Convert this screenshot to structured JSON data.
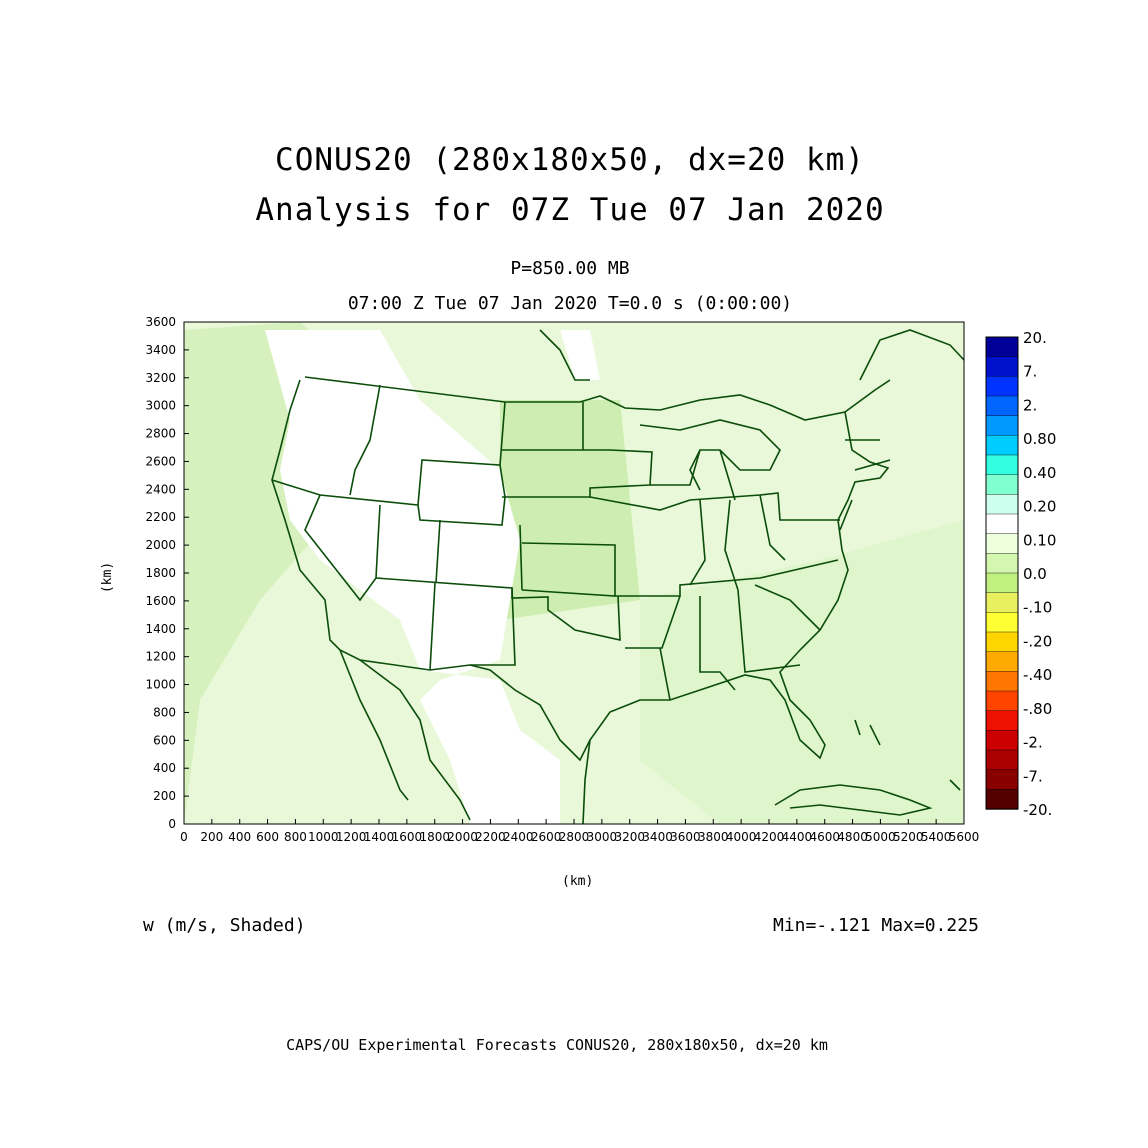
{
  "title": {
    "line1": "CONUS20 (280x180x50, dx=20 km)",
    "line2": "Analysis for 07Z Tue 07 Jan 2020"
  },
  "subtitle": {
    "level": "P=850.00 MB",
    "time": "07:00 Z Tue 07 Jan 2020   T=0.0 s (0:00:00)"
  },
  "axes": {
    "xlabel": "(km)",
    "ylabel": "(km)",
    "x_ticks": [
      "0",
      "200",
      "400",
      "600",
      "800",
      "1000",
      "1200",
      "1400",
      "1600",
      "1800",
      "2000",
      "2200",
      "2400",
      "2600",
      "2800",
      "3000",
      "3200",
      "3400",
      "3600",
      "3800",
      "4000",
      "4200",
      "4400",
      "4600",
      "4800",
      "5000",
      "5200",
      "5400",
      "5600"
    ],
    "y_ticks": [
      "0",
      "200",
      "400",
      "600",
      "800",
      "1000",
      "1200",
      "1400",
      "1600",
      "1800",
      "2000",
      "2200",
      "2400",
      "2600",
      "2800",
      "3000",
      "3200",
      "3400",
      "3600"
    ],
    "xlim": [
      0,
      5600
    ],
    "ylim": [
      0,
      3600
    ]
  },
  "colorbar": {
    "labels": [
      "20.",
      "7.",
      "2.",
      "0.80",
      "0.40",
      "0.20",
      "0.10",
      "0.0",
      "-.10",
      "-.20",
      "-.40",
      "-.80",
      "-2.",
      "-7.",
      "-20."
    ],
    "colors": [
      "#000099",
      "#0011cc",
      "#0033ff",
      "#0066ff",
      "#0099ff",
      "#00ccff",
      "#33ffe0",
      "#80ffd0",
      "#ccffee",
      "#ffffff",
      "#eeffdd",
      "#d4f7b0",
      "#c0f080",
      "#e8f060",
      "#ffff33",
      "#ffd500",
      "#ffaa00",
      "#ff7700",
      "#ff4400",
      "#ee1100",
      "#cc0000",
      "#aa0000",
      "#880000",
      "#550000"
    ]
  },
  "field": {
    "description": "w (m/s, Shaded)",
    "minmax": "Min=-.121 Max=0.225"
  },
  "footer": "CAPS/OU Experimental Forecasts  CONUS20, 280x180x50, dx=20 km",
  "map": {
    "land_color": "#e6f7cf",
    "land_dark_color": "#d5f0b4",
    "white_region_color": "#ffffff",
    "boundary_color": "#0a4d0a"
  }
}
